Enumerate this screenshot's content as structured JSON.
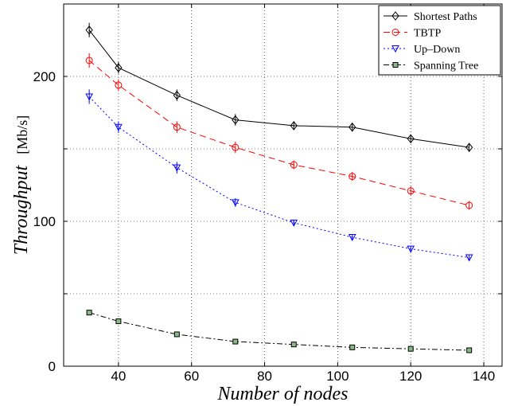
{
  "chart_data": {
    "type": "line",
    "xlabel": "Number of nodes",
    "ylabel": "Throughput",
    "ylabel_unit": "[Mb/s]",
    "xlim": [
      25,
      145
    ],
    "ylim": [
      0,
      250
    ],
    "xticks": [
      40,
      60,
      80,
      100,
      120,
      140
    ],
    "xtick_labels": [
      "40",
      "60",
      "80",
      "100",
      "120",
      "140"
    ],
    "yticks": [
      0,
      50,
      100,
      150,
      200,
      250
    ],
    "ytick_labels": [
      "0",
      "",
      "100",
      "",
      "200",
      ""
    ],
    "grid": true,
    "legend_position": "top-right",
    "x": [
      32,
      40,
      56,
      72,
      88,
      104,
      120,
      136
    ],
    "series": [
      {
        "name": "Shortest Paths",
        "values": [
          232,
          206,
          187,
          170,
          166,
          165,
          157,
          151
        ],
        "error": [
          5,
          4,
          4,
          4,
          3,
          3,
          3,
          3
        ],
        "color": "#000000",
        "dash": "",
        "marker": "diamond",
        "marker_fill": "none"
      },
      {
        "name": "TBTP",
        "values": [
          211,
          194,
          165,
          151,
          139,
          131,
          121,
          111
        ],
        "error": [
          5,
          4,
          4,
          4,
          3,
          3,
          3,
          3
        ],
        "color": "#ff0000",
        "dash": "8,5",
        "marker": "circle",
        "marker_fill": "none"
      },
      {
        "name": "Up–Down",
        "values": [
          186,
          165,
          137,
          113,
          99,
          89,
          81,
          75
        ],
        "error": [
          5,
          4,
          4,
          3,
          2,
          2,
          2,
          2
        ],
        "color": "#0000ff",
        "dash": "2,3",
        "marker": "triangle-down",
        "marker_fill": "none"
      },
      {
        "name": "Spanning Tree",
        "values": [
          37,
          31,
          22,
          17,
          15,
          13,
          12,
          11
        ],
        "error": [
          0,
          0,
          0,
          0,
          0,
          0,
          0,
          0
        ],
        "color": "#000000",
        "dash": "7,3,2,3",
        "marker": "square",
        "marker_fill": "#88bb88"
      }
    ]
  }
}
